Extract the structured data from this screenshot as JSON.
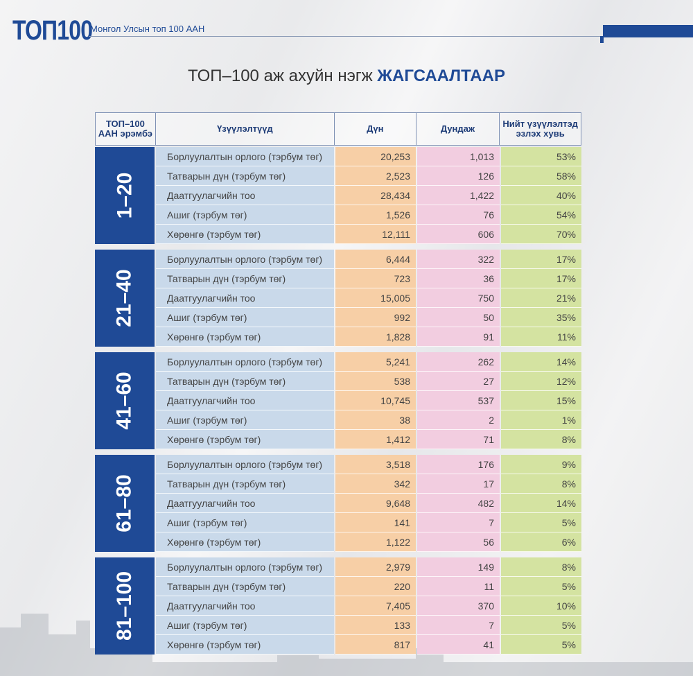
{
  "header": {
    "logo": "ТОП100",
    "subtitle": "Монгол Улсын топ 100 ААН"
  },
  "title": {
    "normal": "ТОП–100 аж ахуйн нэгж ",
    "bold": "ЖАГСААЛТААР"
  },
  "table": {
    "columns": [
      "ТОП–100 ААН эрэмбэ",
      "Үзүүлэлтүүд",
      "Дүн",
      "Дундаж",
      "Нийт үзүүлэлтэд эзлэх хувь"
    ],
    "groups": [
      {
        "rank": "1–20",
        "rows": [
          [
            "Борлуулалтын орлого (тэрбум төг)",
            "20,253",
            "1,013",
            "53%"
          ],
          [
            "Татварын дүн (тэрбум төг)",
            "2,523",
            "126",
            "58%"
          ],
          [
            "Даатгуулагчийн тоо",
            "28,434",
            "1,422",
            "40%"
          ],
          [
            "Ашиг (тэрбум төг)",
            "1,526",
            "76",
            "54%"
          ],
          [
            "Хөрөнгө (тэрбум төг)",
            "12,111",
            "606",
            "70%"
          ]
        ]
      },
      {
        "rank": "21–40",
        "rows": [
          [
            "Борлуулалтын орлого (тэрбум төг)",
            "6,444",
            "322",
            "17%"
          ],
          [
            "Татварын дүн (тэрбум төг)",
            "723",
            "36",
            "17%"
          ],
          [
            "Даатгуулагчийн тоо",
            "15,005",
            "750",
            "21%"
          ],
          [
            "Ашиг (тэрбум төг)",
            "992",
            "50",
            "35%"
          ],
          [
            "Хөрөнгө (тэрбум төг)",
            "1,828",
            "91",
            "11%"
          ]
        ]
      },
      {
        "rank": "41–60",
        "rows": [
          [
            "Борлуулалтын орлого (тэрбум төг)",
            "5,241",
            "262",
            "14%"
          ],
          [
            "Татварын дүн (тэрбум төг)",
            "538",
            "27",
            "12%"
          ],
          [
            "Даатгуулагчийн тоо",
            "10,745",
            "537",
            "15%"
          ],
          [
            "Ашиг (тэрбум төг)",
            "38",
            "2",
            "1%"
          ],
          [
            "Хөрөнгө (тэрбум төг)",
            "1,412",
            "71",
            "8%"
          ]
        ]
      },
      {
        "rank": "61–80",
        "rows": [
          [
            "Борлуулалтын орлого (тэрбум төг)",
            "3,518",
            "176",
            "9%"
          ],
          [
            "Татварын дүн (тэрбум төг)",
            "342",
            "17",
            "8%"
          ],
          [
            "Даатгуулагчийн тоо",
            "9,648",
            "482",
            "14%"
          ],
          [
            "Ашиг (тэрбум төг)",
            "141",
            "7",
            "5%"
          ],
          [
            "Хөрөнгө (тэрбум төг)",
            "1,122",
            "56",
            "6%"
          ]
        ]
      },
      {
        "rank": "81–100",
        "rows": [
          [
            "Борлуулалтын орлого (тэрбум төг)",
            "2,979",
            "149",
            "8%"
          ],
          [
            "Татварын дүн (тэрбум төг)",
            "220",
            "11",
            "5%"
          ],
          [
            "Даатгуулагчийн тоо",
            "7,405",
            "370",
            "10%"
          ],
          [
            "Ашиг (тэрбум төг)",
            "133",
            "7",
            "5%"
          ],
          [
            "Хөрөнгө (тэрбум төг)",
            "817",
            "41",
            "5%"
          ]
        ]
      }
    ]
  }
}
